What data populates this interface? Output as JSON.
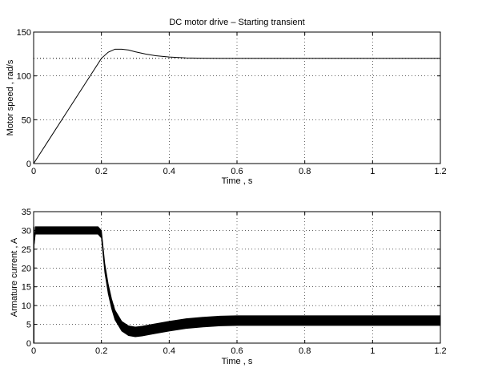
{
  "chart_data": [
    {
      "type": "line",
      "title": "DC motor drive – Starting transient",
      "xlabel": "Time , s",
      "ylabel": "Motor speed , rad/s",
      "xlim": [
        0,
        1.2
      ],
      "ylim": [
        0,
        150
      ],
      "xticks": [
        "0",
        "0.2",
        "0.4",
        "0.6",
        "0.8",
        "1",
        "1.2"
      ],
      "yticks": [
        "0",
        "50",
        "100",
        "150"
      ],
      "grid": "dotted",
      "reference_line": {
        "y": 120,
        "style": "dotted"
      },
      "series": [
        {
          "x": [
            0,
            0.05,
            0.1,
            0.15,
            0.2,
            0.22,
            0.24,
            0.26,
            0.28,
            0.3,
            0.33,
            0.36,
            0.4,
            0.45,
            0.5,
            0.55,
            0.6,
            0.7,
            0.8,
            0.9,
            1.0,
            1.1,
            1.2
          ],
          "y": [
            0,
            30,
            60,
            90,
            120,
            127,
            130.5,
            130.5,
            129.5,
            127.5,
            125,
            123,
            121.5,
            120.5,
            120.2,
            120,
            120,
            120,
            120,
            120,
            120,
            120,
            120
          ]
        }
      ]
    },
    {
      "type": "line",
      "title": "",
      "xlabel": "Time , s",
      "ylabel": "Armature current , A",
      "xlim": [
        0,
        1.2
      ],
      "ylim": [
        0,
        35
      ],
      "xticks": [
        "0",
        "0.2",
        "0.4",
        "0.6",
        "0.8",
        "1",
        "1.2"
      ],
      "yticks": [
        "0",
        "5",
        "10",
        "15",
        "20",
        "25",
        "30",
        "35"
      ],
      "grid": "dotted",
      "series": [
        {
          "x": [
            0,
            0.005,
            0.19,
            0.2,
            0.21,
            0.22,
            0.23,
            0.24,
            0.26,
            0.28,
            0.3,
            0.32,
            0.35,
            0.4,
            0.45,
            0.5,
            0.55,
            0.6,
            0.7,
            0.8,
            0.9,
            1.0,
            1.1,
            1.2
          ],
          "y": [
            25,
            30,
            30,
            29,
            20,
            14.5,
            10.5,
            7.5,
            4.5,
            3.3,
            3,
            3.2,
            3.7,
            4.5,
            5.2,
            5.6,
            5.9,
            6,
            6,
            6,
            6,
            6,
            6,
            6
          ],
          "ripple_band": [
            0,
            1,
            1,
            1,
            1.2,
            1.3,
            1.3,
            1.3,
            1.3,
            1.3,
            1.3,
            1.3,
            1.3,
            1.3,
            1.3,
            1.3,
            1.3,
            1.3,
            1.3,
            1.3,
            1.3,
            1.3,
            1.3,
            1.3
          ]
        }
      ]
    }
  ]
}
